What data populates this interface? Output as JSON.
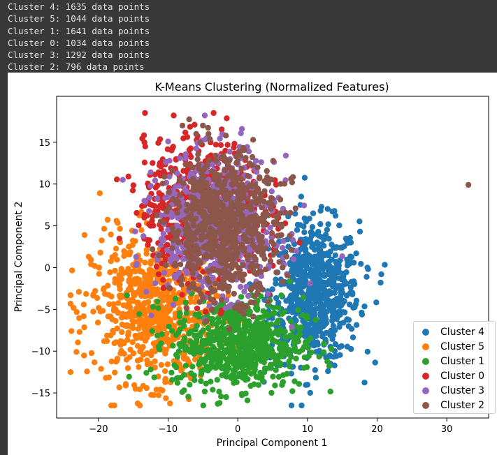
{
  "console": {
    "lines": [
      "Cluster 4: 1635 data points",
      "Cluster 5: 1044 data points",
      "Cluster 1: 1641 data points",
      "Cluster 0: 1034 data points",
      "Cluster 3: 1292 data points",
      "Cluster 2: 796 data points"
    ]
  },
  "chart_data": {
    "type": "scatter",
    "title": "K-Means Clustering (Normalized Features)",
    "xlabel": "Principal Component 1",
    "ylabel": "Principal Component 2",
    "xlim": [
      -26,
      36
    ],
    "ylim": [
      -18,
      20.5
    ],
    "xticks": [
      -20,
      -10,
      0,
      10,
      20,
      30
    ],
    "yticks": [
      -15,
      -10,
      -5,
      0,
      5,
      10,
      15
    ],
    "grid": false,
    "legend_placement": "lower-right",
    "series": [
      {
        "name": "Cluster 4",
        "color": "#1f77b4",
        "count": 1635,
        "center": [
          11,
          -3
        ],
        "spread": [
          3.2,
          4.2
        ],
        "outliers": [
          [
            20.5,
            -1.8
          ],
          [
            20.6,
            -0.8
          ],
          [
            14.9,
            -9.4
          ],
          [
            9.1,
            8.5
          ],
          [
            17.0,
            1.7
          ],
          [
            18.6,
            0.0
          ]
        ]
      },
      {
        "name": "Cluster 5",
        "color": "#ff7f0e",
        "count": 1044,
        "center": [
          -12,
          -5
        ],
        "spread": [
          4.5,
          4.3
        ],
        "outliers": [
          [
            -22.0,
            3.9
          ],
          [
            -19.8,
            8.9
          ],
          [
            -22.7,
            -7.7
          ],
          [
            -17.4,
            5.6
          ],
          [
            -10.8,
            -14.7
          ],
          [
            -22.8,
            -2.9
          ]
        ]
      },
      {
        "name": "Cluster 1",
        "color": "#2ca02c",
        "count": 1641,
        "center": [
          0,
          -9
        ],
        "spread": [
          4.7,
          2.7
        ],
        "outliers": [
          [
            -2.6,
            -16.2
          ],
          [
            0.6,
            -15.1
          ],
          [
            9.5,
            -9.5
          ],
          [
            9.5,
            -12.0
          ],
          [
            -8.6,
            -13.2
          ]
        ]
      },
      {
        "name": "Cluster 0",
        "color": "#d62728",
        "count": 1034,
        "center": [
          -5,
          7
        ],
        "spread": [
          4.2,
          4.0
        ],
        "outliers": [
          [
            -9.2,
            18.2
          ],
          [
            -6.2,
            17.1
          ],
          [
            -13.4,
            15.0
          ],
          [
            -15.7,
            10.9
          ],
          [
            -12.6,
            11.1
          ]
        ]
      },
      {
        "name": "Cluster 3",
        "color": "#9467bd",
        "count": 1292,
        "center": [
          -3,
          5
        ],
        "spread": [
          4.2,
          4.0
        ],
        "outliers": [
          [
            0.6,
            16.6
          ],
          [
            -16.5,
            10.5
          ],
          [
            -10.0,
            15.1
          ],
          [
            8.0,
            1.0
          ],
          [
            -12.7,
            8.4
          ]
        ]
      },
      {
        "name": "Cluster 2",
        "color": "#8c564b",
        "count": 796,
        "center": [
          -2,
          5
        ],
        "spread": [
          4.0,
          4.2
        ],
        "outliers": [
          [
            33.1,
            9.9
          ],
          [
            -5.0,
            17.0
          ],
          [
            2.2,
            15.3
          ],
          [
            -1.7,
            15.8
          ],
          [
            7.8,
            10.2
          ],
          [
            -4.2,
            16.0
          ]
        ]
      }
    ]
  }
}
